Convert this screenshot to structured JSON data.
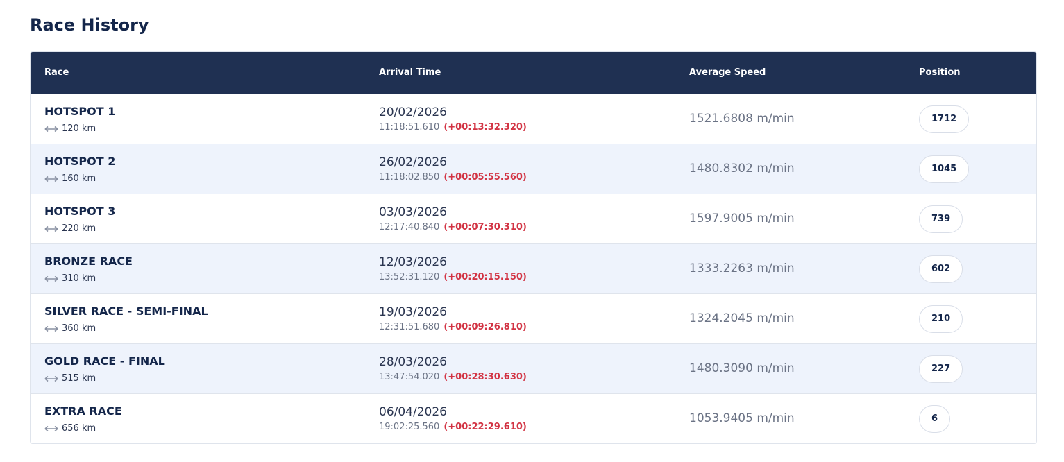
{
  "header": {
    "title": "Race History"
  },
  "table": {
    "columns": [
      "Race",
      "Arrival Time",
      "Average Speed",
      "Position"
    ],
    "rows": [
      {
        "race": "HOTSPOT 1",
        "distance": "120 km",
        "date": "20/02/2026",
        "time": "11:18:51.610",
        "gap": "(+00:13:32.320)",
        "speed": "1521.6808 m/min",
        "position": "1712"
      },
      {
        "race": "HOTSPOT 2",
        "distance": "160 km",
        "date": "26/02/2026",
        "time": "11:18:02.850",
        "gap": "(+00:05:55.560)",
        "speed": "1480.8302 m/min",
        "position": "1045"
      },
      {
        "race": "HOTSPOT 3",
        "distance": "220 km",
        "date": "03/03/2026",
        "time": "12:17:40.840",
        "gap": "(+00:07:30.310)",
        "speed": "1597.9005 m/min",
        "position": "739"
      },
      {
        "race": "BRONZE RACE",
        "distance": "310 km",
        "date": "12/03/2026",
        "time": "13:52:31.120",
        "gap": "(+00:20:15.150)",
        "speed": "1333.2263 m/min",
        "position": "602"
      },
      {
        "race": "SILVER RACE - SEMI-FINAL",
        "distance": "360 km",
        "date": "19/03/2026",
        "time": "12:31:51.680",
        "gap": "(+00:09:26.810)",
        "speed": "1324.2045 m/min",
        "position": "210"
      },
      {
        "race": "GOLD RACE - FINAL",
        "distance": "515 km",
        "date": "28/03/2026",
        "time": "13:47:54.020",
        "gap": "(+00:28:30.630)",
        "speed": "1480.3090 m/min",
        "position": "227"
      },
      {
        "race": "EXTRA RACE",
        "distance": "656 km",
        "date": "06/04/2026",
        "time": "19:02:25.560",
        "gap": "(+00:22:29.610)",
        "speed": "1053.9405 m/min",
        "position": "6"
      }
    ]
  }
}
